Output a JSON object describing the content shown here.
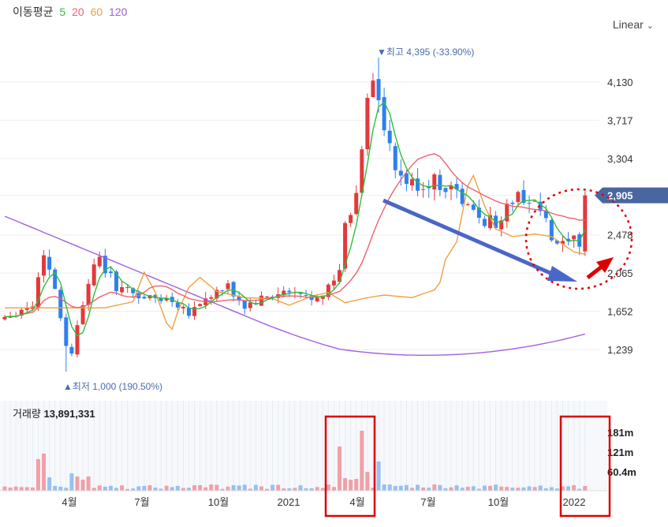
{
  "legend": {
    "title": "이동평균",
    "ma": [
      "5",
      "20",
      "60",
      "120"
    ]
  },
  "scale": {
    "label": "Linear"
  },
  "colors": {
    "up": "#e5383b",
    "down": "#2f7ff0",
    "ma5": "#2cbf3a",
    "ma20": "#f06070",
    "ma60": "#f0a040",
    "ma120": "#a060e0",
    "current_badge": "#4a66a0",
    "arrow_blue": "#4a66c8",
    "annotation_red": "#dd0000"
  },
  "price": {
    "current": "2,905",
    "high_label": "▼최고 4,395 (-33.90%)",
    "low_label": "▲최저 1,000 (190.50%)"
  },
  "volume": {
    "label": "거래량",
    "value": "13,891,331",
    "axis_labels": [
      "181m",
      "121m",
      "60.4m"
    ]
  },
  "chart_data": {
    "type": "candlestick",
    "title": "",
    "y_axis": {
      "ticks": [
        1239,
        1652,
        2065,
        2478,
        2905,
        3304,
        3717,
        4130
      ],
      "tick_labels": [
        "1,239",
        "1,652",
        "2,065",
        "2,478",
        "2,905",
        "3,304",
        "3,717",
        "4,130"
      ],
      "range": [
        950,
        4550
      ]
    },
    "x_axis": {
      "labels": [
        "4월",
        "7월",
        "10월",
        "2021",
        "4월",
        "7월",
        "10월",
        "2022"
      ]
    },
    "annotations": {
      "high": 4395,
      "low": 1000,
      "current": 2905
    },
    "moving_averages": [
      "5",
      "20",
      "60",
      "120"
    ],
    "volume_axis_max": 181
  }
}
